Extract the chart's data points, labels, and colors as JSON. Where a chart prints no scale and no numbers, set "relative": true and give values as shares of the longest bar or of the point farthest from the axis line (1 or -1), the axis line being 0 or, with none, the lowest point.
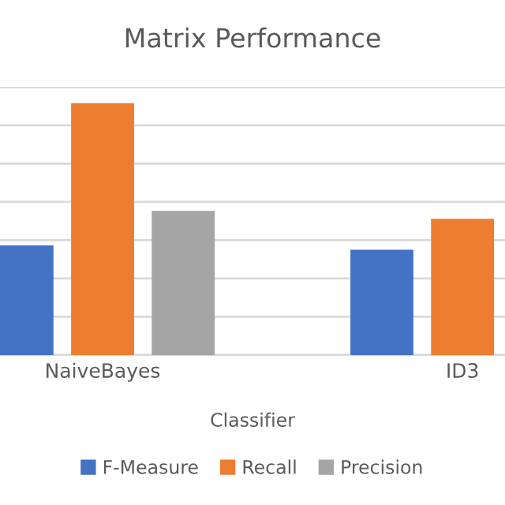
{
  "chart_data": {
    "type": "bar",
    "title": "Matrix Performance",
    "xlabel": "Classifier",
    "relative": true,
    "categories": [
      "NaiveBayes",
      "ID3"
    ],
    "series": [
      {
        "name": "F-Measure",
        "color": "#4472c4",
        "values": [
          0.435,
          0.418
        ]
      },
      {
        "name": "Recall",
        "color": "#ed7d31",
        "values": [
          1.0,
          0.541
        ]
      },
      {
        "name": "Precision",
        "color": "#a5a5a5",
        "values": [
          0.572,
          null
        ]
      }
    ],
    "grid": "y",
    "legend": "bottom"
  }
}
